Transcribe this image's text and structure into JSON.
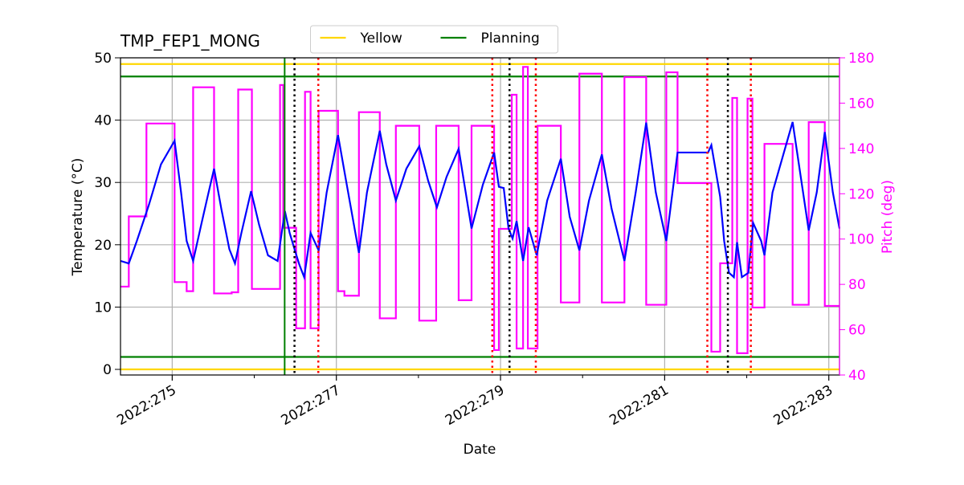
{
  "chart_data": {
    "type": "line",
    "title": "TMP_FEP1_MONG",
    "x_label": "Date",
    "y_label": "Temperature (°C)",
    "y2_label": "Pitch (deg)",
    "y2_color": "#ff00ff",
    "xlim": [
      274.37,
      283.13
    ],
    "xticks": [
      {
        "value": 275,
        "label": "2022:275"
      },
      {
        "value": 277,
        "label": "2022:277"
      },
      {
        "value": 279,
        "label": "2022:279"
      },
      {
        "value": 281,
        "label": "2022:281"
      },
      {
        "value": 283,
        "label": "2022:283"
      }
    ],
    "xminorticks": [
      276,
      278,
      280,
      282
    ],
    "ylim": [
      -0.9,
      50
    ],
    "yticks": [
      0,
      10,
      20,
      30,
      40,
      50
    ],
    "y2lim": [
      40,
      180
    ],
    "y2ticks": [
      40,
      60,
      80,
      100,
      120,
      140,
      160,
      180
    ],
    "grid": true,
    "legend": "upper center",
    "reference_lines": [
      {
        "name": "Yellow",
        "color": "#ffd700",
        "y": [
          49,
          0
        ]
      },
      {
        "name": "Planning",
        "color": "#008000",
        "y": [
          47,
          2
        ]
      }
    ],
    "vlines": [
      {
        "color": "#008000",
        "style": "solid",
        "x": [
          276.37
        ]
      },
      {
        "color": "#000000",
        "style": "dotted",
        "x": [
          276.49,
          279.11,
          281.77
        ]
      },
      {
        "color": "#ff0000",
        "style": "dotted",
        "x": [
          276.78,
          278.9,
          279.43,
          281.52,
          282.05
        ]
      }
    ],
    "series": [
      {
        "color": "#ff00ff",
        "axis": "y2",
        "x": [
          274.373,
          274.471,
          274.471,
          274.686,
          274.686,
          275.029,
          275.029,
          275.176,
          275.176,
          275.255,
          275.255,
          275.51,
          275.51,
          275.725,
          275.725,
          275.804,
          275.804,
          275.971,
          275.971,
          276.314,
          276.314,
          276.353,
          276.353,
          276.51,
          276.51,
          276.618,
          276.618,
          276.686,
          276.686,
          276.784,
          276.784,
          277.02,
          277.02,
          277.098,
          277.098,
          277.275,
          277.275,
          277.529,
          277.529,
          277.725,
          277.725,
          278.01,
          278.01,
          278.216,
          278.216,
          278.49,
          278.49,
          278.647,
          278.647,
          278.922,
          278.922,
          278.98,
          278.98,
          279.137,
          279.137,
          279.196,
          279.196,
          279.275,
          279.275,
          279.333,
          279.333,
          279.451,
          279.451,
          279.735,
          279.735,
          279.961,
          279.961,
          280.235,
          280.235,
          280.51,
          280.51,
          280.775,
          280.775,
          281.02,
          281.02,
          281.157,
          281.157,
          281.569,
          281.569,
          281.676,
          281.676,
          281.824,
          281.824,
          281.882,
          281.882,
          282.01,
          282.01,
          282.069,
          282.069,
          282.216,
          282.216,
          282.559,
          282.559,
          282.755,
          282.755,
          282.951,
          282.951,
          283.13
        ],
        "values": [
          79,
          79,
          110,
          110,
          151,
          151,
          81,
          81,
          77,
          77,
          167,
          167,
          76,
          76,
          76.5,
          76.5,
          166,
          166,
          78,
          78,
          168,
          168,
          105,
          105,
          60.6,
          60.6,
          165,
          165,
          60.6,
          60.6,
          156.6,
          156.6,
          77,
          77,
          75,
          75,
          156,
          156,
          65,
          65,
          150,
          150,
          64,
          64,
          150,
          150,
          73,
          73,
          150,
          150,
          51,
          51,
          104.5,
          104.5,
          163.7,
          163.7,
          51.7,
          51.7,
          176,
          176,
          51.7,
          51.7,
          150,
          150,
          72,
          72,
          173,
          173,
          72,
          72,
          171.5,
          171.5,
          71,
          71,
          173.6,
          173.6,
          124.7,
          124.7,
          50.3,
          50.3,
          89.3,
          89.3,
          162.3,
          162.3,
          49.6,
          49.6,
          162,
          162,
          69.8,
          69.8,
          142,
          142,
          71,
          71,
          151.6,
          151.6,
          70.5,
          70.5
        ]
      },
      {
        "color": "#0000ff",
        "axis": "y",
        "x": [
          274.373,
          274.471,
          274.569,
          274.716,
          274.863,
          275.029,
          275.108,
          275.176,
          275.255,
          275.353,
          275.431,
          275.51,
          275.598,
          275.696,
          275.765,
          275.843,
          275.961,
          276.059,
          276.167,
          276.284,
          276.373,
          276.431,
          276.49,
          276.549,
          276.608,
          276.686,
          276.784,
          276.882,
          277.02,
          277.118,
          277.275,
          277.373,
          277.529,
          277.608,
          277.725,
          277.853,
          278.01,
          278.118,
          278.225,
          278.343,
          278.49,
          278.647,
          278.784,
          278.922,
          278.98,
          279.039,
          279.098,
          279.147,
          279.196,
          279.275,
          279.343,
          279.441,
          279.569,
          279.735,
          279.843,
          279.961,
          280.078,
          280.235,
          280.353,
          280.51,
          280.647,
          280.775,
          280.892,
          281.02,
          281.157,
          281.529,
          281.569,
          281.676,
          281.725,
          281.784,
          281.843,
          281.882,
          281.941,
          282.02,
          282.078,
          282.176,
          282.216,
          282.314,
          282.559,
          282.755,
          282.853,
          282.951,
          283.049,
          283.13
        ],
        "values": [
          17.4,
          17.0,
          20.6,
          26.4,
          32.9,
          36.7,
          28.4,
          20.6,
          17.4,
          23.2,
          27.7,
          32.2,
          25.8,
          19.3,
          17.0,
          21.9,
          28.6,
          23.2,
          18.3,
          17.4,
          25.4,
          21.9,
          19.3,
          16.8,
          14.8,
          21.9,
          19.1,
          28.4,
          37.6,
          30.3,
          18.7,
          28.4,
          38.3,
          32.9,
          27.1,
          32.2,
          35.8,
          30.3,
          26.0,
          30.9,
          35.4,
          22.6,
          29.6,
          34.8,
          29.3,
          29.1,
          22.6,
          21.0,
          23.8,
          17.4,
          22.8,
          18.3,
          27.1,
          33.8,
          24.5,
          19.1,
          27.1,
          34.5,
          25.8,
          17.4,
          28.4,
          39.6,
          28.4,
          20.6,
          34.8,
          34.8,
          36.0,
          27.7,
          20.6,
          15.5,
          14.8,
          20.4,
          14.8,
          15.5,
          23.5,
          20.6,
          18.3,
          28.4,
          39.7,
          22.3,
          28.4,
          38.1,
          28.4,
          22.6
        ]
      }
    ]
  }
}
